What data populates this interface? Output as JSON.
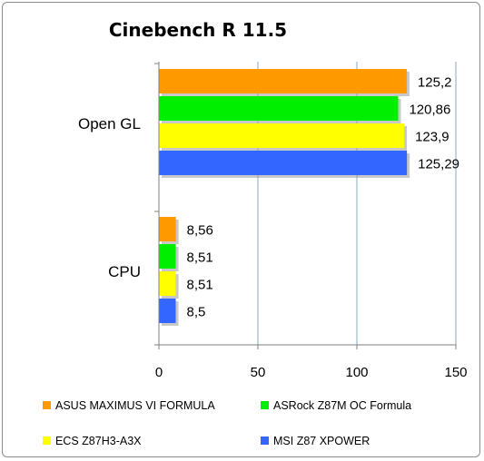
{
  "chart_data": {
    "type": "bar",
    "orientation": "horizontal",
    "title": "Cinebench R 11.5",
    "xlabel": "",
    "ylabel": "",
    "categories": [
      "Open GL",
      "CPU"
    ],
    "xlim": [
      0,
      150
    ],
    "x_ticks": [
      "0",
      "50",
      "100",
      "150"
    ],
    "grid": "vertical",
    "legend_position": "bottom",
    "series": [
      {
        "name": "ASUS MAXIMUS VI FORMULA",
        "color": "#ff9900",
        "values": [
          125.2,
          8.56
        ],
        "labels": [
          "125,2",
          "8,56"
        ]
      },
      {
        "name": "ASRock Z87M OC Formula",
        "color": "#00ee00",
        "values": [
          120.86,
          8.51
        ],
        "labels": [
          "120,86",
          "8,51"
        ]
      },
      {
        "name": "ECS Z87H3-A3X",
        "color": "#ffff00",
        "values": [
          123.9,
          8.51
        ],
        "labels": [
          "123,9",
          "8,51"
        ]
      },
      {
        "name": "MSI Z87 XPOWER",
        "color": "#3366ff",
        "values": [
          125.29,
          8.5
        ],
        "labels": [
          "125,29",
          "8,5"
        ]
      }
    ]
  }
}
